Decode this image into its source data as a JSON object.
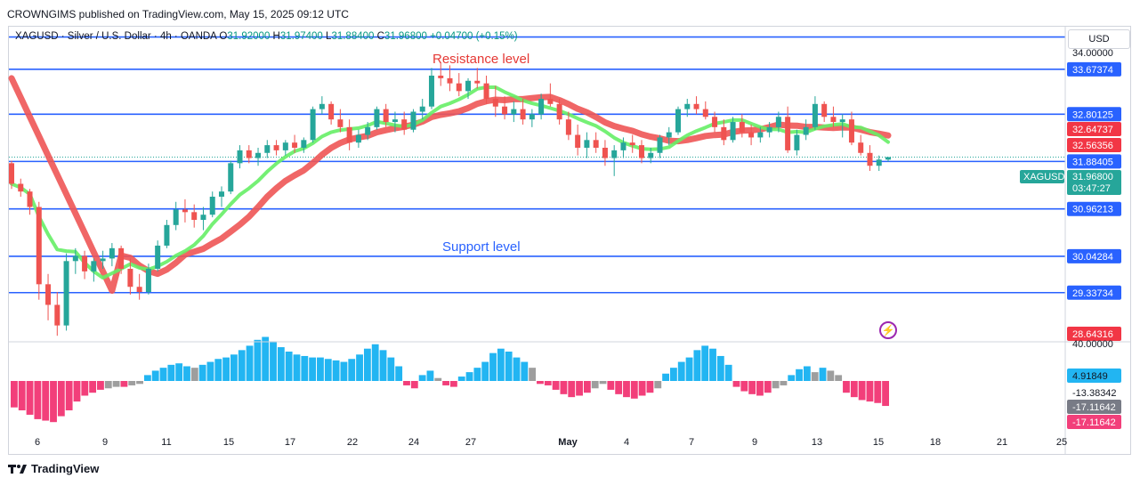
{
  "header": {
    "text": "CROWNGIMS published on TradingView.com, May 15, 2025 09:12 UTC"
  },
  "legend": {
    "symbol": "XAGUSD · Silver / U.S. Dollar · 4h · OANDA",
    "open_label": "O",
    "open": "31.92000",
    "high_label": "H",
    "high": "31.97400",
    "low_label": "L",
    "low": "31.88400",
    "close_label": "C",
    "close": "31.96800",
    "change": "+0.04700 (+0.15%)"
  },
  "currency": "USD",
  "annotations": {
    "resistance": "Resistance level",
    "support": "Support level"
  },
  "footer": {
    "brand": "TradingView"
  },
  "colors": {
    "up": "#26a69a",
    "down": "#ef5350",
    "level_line": "#2962ff",
    "ma_fast": "#66ee66",
    "ma_slow": "#ee5555",
    "hist_pos": "#22b5f2",
    "hist_neg": "#f23f7a",
    "hist_gray": "#9e9e9e"
  },
  "chart_data": {
    "type": "candlestick",
    "price_axis": {
      "ticks": [
        "34.00000"
      ],
      "ylim": [
        28.4,
        34.5
      ]
    },
    "price_labels": [
      {
        "text": "33.67374",
        "value": 33.67374,
        "kind": "level"
      },
      {
        "text": "32.80125",
        "value": 32.80125,
        "kind": "level"
      },
      {
        "text": "32.64737",
        "value": 32.64737,
        "kind": "ma_slow"
      },
      {
        "text": "32.56356",
        "value": 32.56356,
        "kind": "ma_fast"
      },
      {
        "text": "31.96800",
        "value": 31.968,
        "kind": "price",
        "symbol": "XAGUSD",
        "countdown": "03:47:27"
      },
      {
        "text": "31.88405",
        "value": 31.88405,
        "kind": "level"
      },
      {
        "text": "30.96213",
        "value": 30.96213,
        "kind": "level"
      },
      {
        "text": "30.04284",
        "value": 30.04284,
        "kind": "level"
      },
      {
        "text": "29.33734",
        "value": 29.33734,
        "kind": "level"
      },
      {
        "text": "28.64316",
        "value": 28.64316,
        "kind": "ma_slow_low"
      }
    ],
    "horizontal_levels": [
      34.3,
      33.67374,
      32.80125,
      31.88405,
      30.96213,
      30.04284,
      29.33734
    ],
    "x_ticks": [
      "6",
      "9",
      "11",
      "15",
      "17",
      "22",
      "24",
      "27",
      "May",
      "4",
      "7",
      "9",
      "13",
      "15",
      "18",
      "21",
      "25"
    ],
    "candles": [
      [
        31.85,
        31.9,
        31.35,
        31.45
      ],
      [
        31.45,
        31.55,
        31.2,
        31.3
      ],
      [
        31.3,
        31.35,
        30.85,
        31.0
      ],
      [
        31.0,
        31.1,
        29.2,
        29.5
      ],
      [
        29.5,
        29.7,
        28.8,
        29.1
      ],
      [
        29.1,
        29.35,
        28.5,
        28.7
      ],
      [
        28.7,
        30.1,
        28.6,
        29.95
      ],
      [
        29.95,
        30.2,
        29.7,
        30.05
      ],
      [
        30.05,
        30.15,
        29.6,
        29.75
      ],
      [
        29.75,
        30.0,
        29.55,
        29.95
      ],
      [
        29.95,
        30.15,
        29.8,
        30.0
      ],
      [
        30.0,
        30.3,
        29.85,
        30.2
      ],
      [
        30.2,
        30.25,
        29.7,
        29.8
      ],
      [
        29.8,
        30.0,
        29.3,
        29.45
      ],
      [
        29.45,
        29.7,
        29.2,
        29.35
      ],
      [
        29.35,
        29.9,
        29.3,
        29.8
      ],
      [
        29.8,
        30.35,
        29.75,
        30.25
      ],
      [
        30.25,
        30.75,
        30.2,
        30.65
      ],
      [
        30.65,
        31.1,
        30.55,
        30.95
      ],
      [
        30.95,
        31.15,
        30.7,
        30.9
      ],
      [
        30.9,
        31.05,
        30.6,
        30.75
      ],
      [
        30.75,
        31.0,
        30.55,
        30.85
      ],
      [
        30.85,
        31.3,
        30.8,
        31.2
      ],
      [
        31.2,
        31.4,
        31.0,
        31.3
      ],
      [
        31.3,
        31.9,
        31.25,
        31.85
      ],
      [
        31.85,
        32.2,
        31.75,
        32.1
      ],
      [
        32.1,
        32.2,
        31.85,
        31.95
      ],
      [
        31.95,
        32.15,
        31.8,
        32.05
      ],
      [
        32.05,
        32.3,
        31.95,
        32.2
      ],
      [
        32.2,
        32.3,
        32.0,
        32.1
      ],
      [
        32.1,
        32.3,
        32.0,
        32.25
      ],
      [
        32.25,
        32.4,
        32.05,
        32.15
      ],
      [
        32.15,
        32.35,
        32.05,
        32.3
      ],
      [
        32.3,
        32.95,
        32.25,
        32.9
      ],
      [
        32.9,
        33.15,
        32.8,
        33.0
      ],
      [
        33.0,
        33.05,
        32.6,
        32.7
      ],
      [
        32.7,
        32.9,
        32.45,
        32.55
      ],
      [
        32.55,
        32.7,
        32.1,
        32.25
      ],
      [
        32.25,
        32.5,
        32.15,
        32.4
      ],
      [
        32.4,
        32.65,
        32.3,
        32.55
      ],
      [
        32.55,
        32.95,
        32.5,
        32.9
      ],
      [
        32.9,
        33.0,
        32.55,
        32.65
      ],
      [
        32.65,
        32.85,
        32.45,
        32.7
      ],
      [
        32.7,
        32.85,
        32.4,
        32.5
      ],
      [
        32.5,
        32.9,
        32.45,
        32.85
      ],
      [
        32.85,
        33.1,
        32.7,
        32.95
      ],
      [
        32.95,
        33.7,
        32.9,
        33.55
      ],
      [
        33.55,
        33.8,
        33.35,
        33.5
      ],
      [
        33.5,
        33.75,
        33.25,
        33.4
      ],
      [
        33.4,
        33.6,
        33.15,
        33.25
      ],
      [
        33.25,
        33.5,
        33.1,
        33.45
      ],
      [
        33.45,
        33.7,
        33.3,
        33.4
      ],
      [
        33.4,
        33.55,
        33.0,
        33.1
      ],
      [
        33.1,
        33.35,
        32.75,
        32.95
      ],
      [
        32.95,
        33.15,
        32.7,
        32.8
      ],
      [
        32.8,
        33.05,
        32.65,
        32.9
      ],
      [
        32.9,
        33.1,
        32.6,
        32.7
      ],
      [
        32.7,
        32.9,
        32.55,
        32.8
      ],
      [
        32.8,
        33.2,
        32.7,
        33.1
      ],
      [
        33.1,
        33.4,
        32.95,
        33.0
      ],
      [
        33.0,
        33.1,
        32.6,
        32.7
      ],
      [
        32.7,
        32.85,
        32.3,
        32.4
      ],
      [
        32.4,
        32.6,
        32.0,
        32.15
      ],
      [
        32.15,
        32.45,
        31.95,
        32.3
      ],
      [
        32.3,
        32.45,
        32.05,
        32.15
      ],
      [
        32.15,
        32.3,
        31.8,
        31.95
      ],
      [
        31.95,
        32.2,
        31.6,
        32.1
      ],
      [
        32.1,
        32.35,
        31.95,
        32.25
      ],
      [
        32.25,
        32.4,
        32.05,
        32.2
      ],
      [
        32.2,
        32.3,
        31.85,
        31.95
      ],
      [
        31.95,
        32.15,
        31.85,
        32.05
      ],
      [
        32.05,
        32.4,
        31.95,
        32.35
      ],
      [
        32.35,
        32.55,
        32.2,
        32.45
      ],
      [
        32.45,
        32.95,
        32.4,
        32.9
      ],
      [
        32.9,
        33.1,
        32.75,
        33.0
      ],
      [
        33.0,
        33.15,
        32.8,
        32.9
      ],
      [
        32.9,
        33.05,
        32.7,
        32.75
      ],
      [
        32.75,
        32.85,
        32.45,
        32.55
      ],
      [
        32.55,
        32.7,
        32.2,
        32.3
      ],
      [
        32.3,
        32.75,
        32.25,
        32.65
      ],
      [
        32.65,
        32.8,
        32.35,
        32.45
      ],
      [
        32.45,
        32.6,
        32.2,
        32.35
      ],
      [
        32.35,
        32.55,
        32.25,
        32.45
      ],
      [
        32.45,
        32.65,
        32.35,
        32.55
      ],
      [
        32.55,
        32.85,
        32.45,
        32.75
      ],
      [
        32.75,
        32.95,
        32.05,
        32.1
      ],
      [
        32.1,
        32.5,
        32.0,
        32.4
      ],
      [
        32.4,
        32.7,
        32.3,
        32.55
      ],
      [
        32.55,
        33.15,
        32.5,
        33.0
      ],
      [
        33.0,
        33.05,
        32.65,
        32.75
      ],
      [
        32.75,
        32.95,
        32.55,
        32.65
      ],
      [
        32.65,
        32.8,
        32.35,
        32.7
      ],
      [
        32.7,
        32.85,
        32.2,
        32.25
      ],
      [
        32.25,
        32.4,
        32.0,
        32.05
      ],
      [
        32.05,
        32.2,
        31.7,
        31.8
      ],
      [
        31.8,
        32.0,
        31.7,
        31.92
      ],
      [
        31.92,
        31.97,
        31.88,
        31.968
      ]
    ],
    "ma_fast": {
      "name": "",
      "value": 32.56356
    },
    "ma_slow": {
      "name": "",
      "value": 32.64737
    },
    "oscillator": {
      "ticks": [
        "40.00000",
        "4.91849",
        "-13.38342",
        "-17.11642",
        "-17.11642"
      ],
      "histogram": [
        -18,
        -20,
        -23,
        -26,
        -27,
        -28,
        -24,
        -20,
        -14,
        -10,
        -8,
        -6,
        -5,
        -4,
        -4,
        -3,
        -2,
        4,
        7,
        9,
        11,
        12,
        10,
        9,
        11,
        13,
        15,
        16,
        18,
        21,
        24,
        28,
        30,
        27,
        23,
        20,
        18,
        17,
        16,
        16,
        15,
        14,
        13,
        15,
        18,
        22,
        25,
        21,
        16,
        10,
        -3,
        -5,
        4,
        7,
        2,
        -3,
        -4,
        3,
        6,
        9,
        13,
        19,
        22,
        20,
        16,
        13,
        9,
        -2,
        -3,
        -6,
        -9,
        -11,
        -10,
        -8,
        -5,
        -2,
        -6,
        -9,
        -11,
        -12,
        -10,
        -8,
        -5,
        5,
        9,
        13,
        16,
        21,
        24,
        22,
        17,
        11,
        -4,
        -7,
        -9,
        -10,
        -8,
        -5,
        -3,
        4,
        8,
        10,
        6,
        9,
        7,
        4,
        -8,
        -11,
        -13,
        -14,
        -15,
        -17
      ]
    }
  }
}
